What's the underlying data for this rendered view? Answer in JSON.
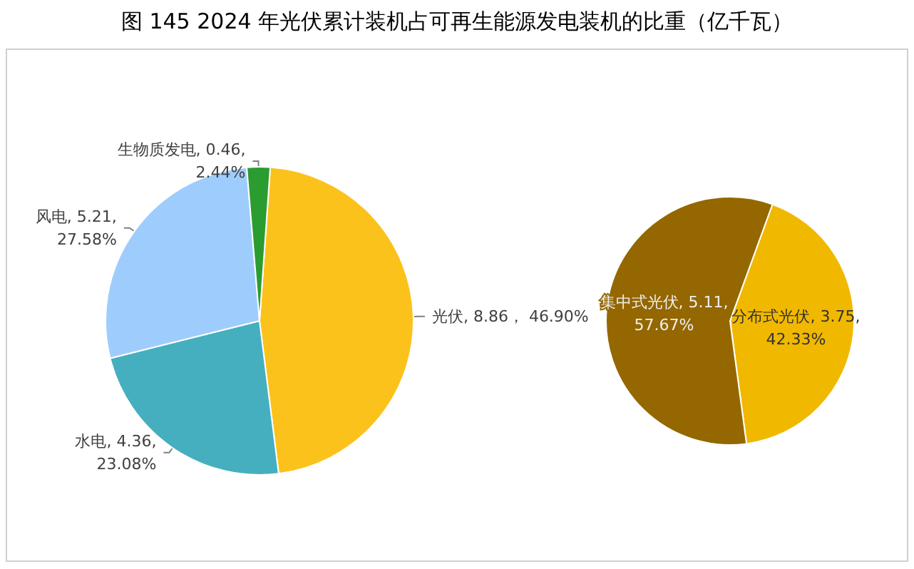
{
  "chart_data": [
    {
      "type": "pie",
      "title": "图 145 2024 年光伏累计装机占可再生能源发电装机的比重（亿千瓦）",
      "categories": [
        "光伏",
        "水电",
        "风电",
        "生物质发电"
      ],
      "values": [
        8.86,
        4.36,
        5.21,
        0.46
      ],
      "value_labels": [
        "8.86， 46.90%",
        "4.36, 23.08%",
        "5.21, 27.58%",
        "0.46, 2.44%"
      ],
      "colors": [
        "#fcc21c",
        "#45afbf",
        "#9ecdfd",
        "#2a9c30"
      ]
    },
    {
      "type": "pie",
      "categories": [
        "分布式光伏",
        "集中式光伏"
      ],
      "values": [
        3.75,
        5.11
      ],
      "value_labels": [
        "3.75, 42.33%",
        "5.11, 57.67%"
      ],
      "colors": [
        "#f1b800",
        "#946700"
      ]
    }
  ]
}
